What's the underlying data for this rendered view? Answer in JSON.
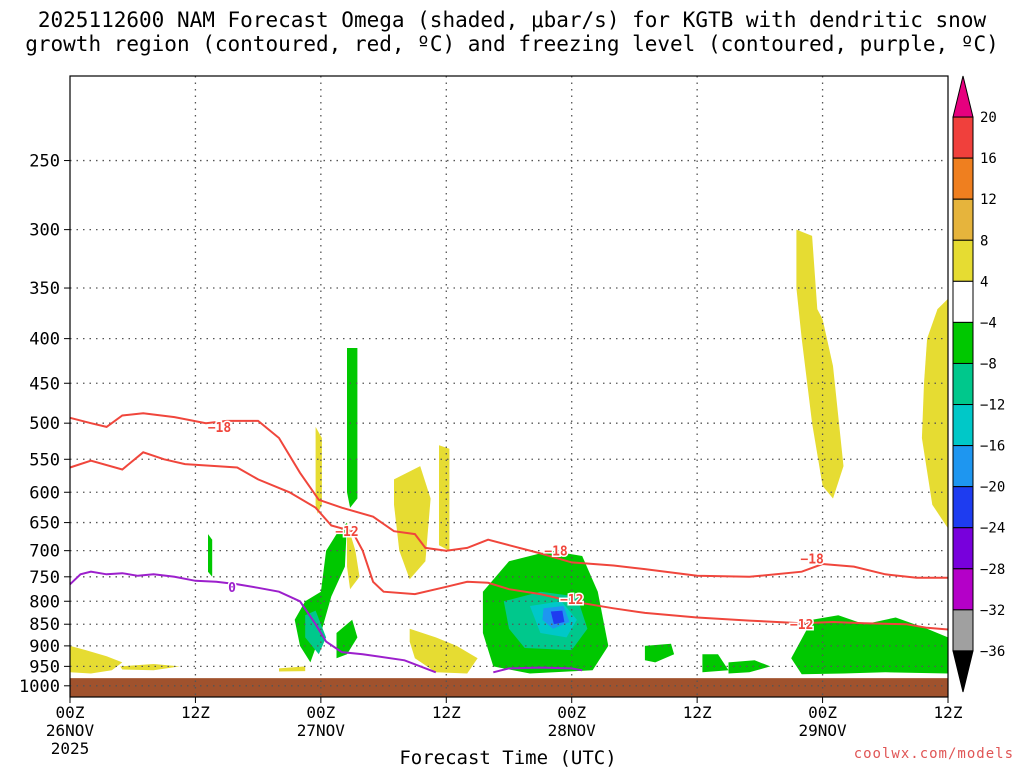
{
  "title_line1": "2025112600 NAM Forecast Omega (shaded, μbar/s) for KGTB with dendritic snow",
  "title_line2": "growth region (contoured, red, ºC) and freezing level (contoured, purple, ºC)",
  "credit": "coolwx.com/models",
  "chart_data": {
    "type": "heatmap",
    "xlabel": "Forecast Time (UTC)",
    "x_range_hours": [
      0,
      84
    ],
    "x_ticks": [
      {
        "hour": 0,
        "line1": "00Z",
        "line2": "26NOV",
        "line3": "2025"
      },
      {
        "hour": 12,
        "line1": "12Z",
        "line2": "",
        "line3": ""
      },
      {
        "hour": 24,
        "line1": "00Z",
        "line2": "27NOV",
        "line3": ""
      },
      {
        "hour": 36,
        "line1": "12Z",
        "line2": "",
        "line3": ""
      },
      {
        "hour": 48,
        "line1": "00Z",
        "line2": "28NOV",
        "line3": ""
      },
      {
        "hour": 60,
        "line1": "12Z",
        "line2": "",
        "line3": ""
      },
      {
        "hour": 72,
        "line1": "00Z",
        "line2": "29NOV",
        "line3": ""
      },
      {
        "hour": 84,
        "line1": "12Z",
        "line2": "",
        "line3": ""
      }
    ],
    "y_axis": "pressure (hPa), log scale, inverted",
    "y_range": [
      200,
      1030
    ],
    "y_ticks": [
      250,
      300,
      350,
      400,
      450,
      500,
      550,
      600,
      650,
      700,
      750,
      800,
      850,
      900,
      950,
      1000
    ],
    "surface_pressure": 980,
    "colorbar": {
      "labels": [
        "20",
        "16",
        "12",
        "8",
        "4",
        "−4",
        "−8",
        "−12",
        "−16",
        "−20",
        "−24",
        "−28",
        "−32",
        "−36"
      ],
      "colors": [
        "#e6007e",
        "#f0403c",
        "#ef7f1f",
        "#e6b43c",
        "#e6dc32",
        "#ffffff",
        "#00c800",
        "#00c88c",
        "#00c8c8",
        "#1e96f0",
        "#1e3cf0",
        "#7800dc",
        "#b400c8",
        "#a0a0a0",
        "#000000"
      ]
    },
    "omega_regions": [
      {
        "color": "#e6dc32",
        "points": [
          [
            0,
            900
          ],
          [
            1.5,
            910
          ],
          [
            3.5,
            925
          ],
          [
            5,
            940
          ],
          [
            4,
            960
          ],
          [
            2,
            968
          ],
          [
            0,
            965
          ]
        ]
      },
      {
        "color": "#e6dc32",
        "points": [
          [
            4.8,
            950
          ],
          [
            8,
            944
          ],
          [
            10.5,
            950
          ],
          [
            8,
            960
          ],
          [
            5,
            958
          ]
        ]
      },
      {
        "color": "#e6dc32",
        "points": [
          [
            20,
            955
          ],
          [
            22.5,
            950
          ],
          [
            22.5,
            962
          ],
          [
            20,
            963
          ]
        ]
      },
      {
        "color": "#e6dc32",
        "points": [
          [
            23.5,
            505
          ],
          [
            24.1,
            520
          ],
          [
            24.1,
            620
          ],
          [
            23.7,
            635
          ],
          [
            23.5,
            620
          ]
        ]
      },
      {
        "color": "#e6dc32",
        "points": [
          [
            26.5,
            650
          ],
          [
            27.3,
            700
          ],
          [
            27.7,
            750
          ],
          [
            26.8,
            775
          ],
          [
            26.5,
            730
          ]
        ]
      },
      {
        "color": "#e6dc32",
        "points": [
          [
            31,
            580
          ],
          [
            33.5,
            560
          ],
          [
            34.5,
            610
          ],
          [
            34,
            720
          ],
          [
            32.5,
            755
          ],
          [
            31.5,
            700
          ],
          [
            31,
            620
          ]
        ]
      },
      {
        "color": "#e6dc32",
        "points": [
          [
            35.3,
            530
          ],
          [
            36.3,
            535
          ],
          [
            36.3,
            700
          ],
          [
            35.3,
            690
          ]
        ]
      },
      {
        "color": "#e6dc32",
        "points": [
          [
            32.5,
            860
          ],
          [
            35,
            880
          ],
          [
            37,
            900
          ],
          [
            39,
            930
          ],
          [
            38,
            968
          ],
          [
            35,
            965
          ],
          [
            33,
            930
          ],
          [
            32.5,
            890
          ]
        ]
      },
      {
        "color": "#e6dc32",
        "points": [
          [
            69.5,
            300
          ],
          [
            71,
            305
          ],
          [
            71.5,
            370
          ],
          [
            72,
            380
          ],
          [
            73,
            430
          ],
          [
            74,
            560
          ],
          [
            73,
            610
          ],
          [
            72,
            590
          ],
          [
            71,
            500
          ],
          [
            70,
            400
          ],
          [
            69.5,
            350
          ]
        ]
      },
      {
        "color": "#e6dc32",
        "points": [
          [
            84,
            360
          ],
          [
            84,
            660
          ],
          [
            82.5,
            620
          ],
          [
            81.5,
            520
          ],
          [
            81.7,
            450
          ],
          [
            82,
            400
          ],
          [
            83,
            370
          ]
        ]
      },
      {
        "color": "#00c800",
        "points": [
          [
            13.2,
            670
          ],
          [
            13.6,
            680
          ],
          [
            13.6,
            750
          ],
          [
            13.2,
            740
          ]
        ]
      },
      {
        "color": "#00c800",
        "points": [
          [
            26.5,
            410
          ],
          [
            27.5,
            410
          ],
          [
            27.5,
            610
          ],
          [
            26.8,
            625
          ],
          [
            26.5,
            600
          ]
        ]
      },
      {
        "color": "#00c800",
        "points": [
          [
            24.5,
            700
          ],
          [
            25.5,
            670
          ],
          [
            26.5,
            650
          ],
          [
            26.3,
            730
          ],
          [
            25,
            790
          ],
          [
            24,
            870
          ],
          [
            23,
            940
          ],
          [
            22,
            900
          ],
          [
            21.5,
            840
          ],
          [
            22.5,
            800
          ],
          [
            24,
            780
          ]
        ]
      },
      {
        "color": "#00c800",
        "points": [
          [
            25.5,
            870
          ],
          [
            27,
            840
          ],
          [
            27.5,
            880
          ],
          [
            26.5,
            920
          ],
          [
            25.5,
            930
          ]
        ]
      },
      {
        "color": "#00c800",
        "points": [
          [
            39.5,
            780
          ],
          [
            42,
            720
          ],
          [
            46,
            700
          ],
          [
            49,
            710
          ],
          [
            50.5,
            780
          ],
          [
            51.5,
            900
          ],
          [
            50,
            960
          ],
          [
            44,
            968
          ],
          [
            40.5,
            950
          ],
          [
            39.5,
            870
          ]
        ]
      },
      {
        "color": "#00c800",
        "points": [
          [
            55,
            900
          ],
          [
            57.5,
            895
          ],
          [
            57.8,
            920
          ],
          [
            56,
            940
          ],
          [
            55,
            935
          ]
        ]
      },
      {
        "color": "#00c800",
        "points": [
          [
            60.5,
            920
          ],
          [
            62,
            920
          ],
          [
            63,
            960
          ],
          [
            60.5,
            965
          ]
        ]
      },
      {
        "color": "#00c800",
        "points": [
          [
            63,
            940
          ],
          [
            65.5,
            935
          ],
          [
            67,
            950
          ],
          [
            65,
            965
          ],
          [
            63,
            968
          ]
        ]
      },
      {
        "color": "#00c800",
        "points": [
          [
            69,
            930
          ],
          [
            71,
            840
          ],
          [
            73.5,
            830
          ],
          [
            76,
            850
          ],
          [
            79,
            835
          ],
          [
            82,
            860
          ],
          [
            84,
            880
          ],
          [
            84,
            968
          ],
          [
            78,
            965
          ],
          [
            74,
            968
          ],
          [
            70,
            970
          ]
        ]
      },
      {
        "color": "#00c88c",
        "points": [
          [
            41.5,
            800
          ],
          [
            45,
            780
          ],
          [
            48.5,
            790
          ],
          [
            49.5,
            860
          ],
          [
            48,
            910
          ],
          [
            43.5,
            905
          ],
          [
            42,
            860
          ]
        ]
      },
      {
        "color": "#00c88c",
        "points": [
          [
            22.5,
            830
          ],
          [
            23.5,
            820
          ],
          [
            24.5,
            880
          ],
          [
            23.8,
            920
          ],
          [
            22.5,
            880
          ]
        ]
      },
      {
        "color": "#00c8c8",
        "points": [
          [
            44,
            810
          ],
          [
            47,
            800
          ],
          [
            48.5,
            840
          ],
          [
            47.5,
            880
          ],
          [
            45,
            870
          ]
        ]
      },
      {
        "color": "#1e96f0",
        "points": [
          [
            45.3,
            815
          ],
          [
            47.2,
            810
          ],
          [
            47.8,
            845
          ],
          [
            46.2,
            860
          ],
          [
            45.2,
            840
          ]
        ]
      },
      {
        "color": "#1e3cf0",
        "points": [
          [
            46,
            822
          ],
          [
            47.1,
            820
          ],
          [
            47.3,
            845
          ],
          [
            46.3,
            850
          ]
        ]
      }
    ],
    "series": [
      {
        "kind": "isotherm",
        "label": "−18",
        "color": "#f0463c",
        "label_positions": [
          [
            14.3,
            505
          ],
          [
            46.5,
            700
          ],
          [
            71,
            715
          ]
        ],
        "points": [
          [
            0,
            493
          ],
          [
            2,
            500
          ],
          [
            3.5,
            505
          ],
          [
            5,
            490
          ],
          [
            7,
            487
          ],
          [
            10,
            492
          ],
          [
            13,
            500
          ],
          [
            15,
            497
          ],
          [
            18,
            497
          ],
          [
            20,
            520
          ],
          [
            22,
            570
          ],
          [
            23.8,
            612
          ],
          [
            26,
            625
          ],
          [
            29,
            640
          ],
          [
            31,
            665
          ],
          [
            33,
            670
          ],
          [
            34,
            695
          ],
          [
            36,
            700
          ],
          [
            38,
            695
          ],
          [
            40,
            680
          ],
          [
            42,
            690
          ],
          [
            45,
            705
          ],
          [
            48,
            722
          ],
          [
            52,
            728
          ],
          [
            55,
            735
          ],
          [
            60,
            748
          ],
          [
            65,
            750
          ],
          [
            70,
            740
          ],
          [
            72,
            725
          ],
          [
            75,
            730
          ],
          [
            78,
            745
          ],
          [
            81,
            752
          ],
          [
            84,
            752
          ]
        ]
      },
      {
        "kind": "isotherm",
        "label": "−12",
        "color": "#f0463c",
        "label_positions": [
          [
            26.5,
            665
          ],
          [
            48,
            795
          ],
          [
            70,
            850
          ]
        ],
        "points": [
          [
            0,
            562
          ],
          [
            2,
            552
          ],
          [
            5,
            565
          ],
          [
            7,
            540
          ],
          [
            9,
            550
          ],
          [
            11,
            557
          ],
          [
            14,
            560
          ],
          [
            16,
            562
          ],
          [
            18,
            580
          ],
          [
            21,
            600
          ],
          [
            23.5,
            625
          ],
          [
            25,
            655
          ],
          [
            27,
            665
          ],
          [
            28,
            700
          ],
          [
            29,
            760
          ],
          [
            30,
            780
          ],
          [
            33,
            785
          ],
          [
            36,
            770
          ],
          [
            38,
            760
          ],
          [
            40,
            762
          ],
          [
            42,
            775
          ],
          [
            45,
            785
          ],
          [
            48,
            800
          ],
          [
            52,
            815
          ],
          [
            55,
            825
          ],
          [
            60,
            835
          ],
          [
            65,
            842
          ],
          [
            70,
            848
          ],
          [
            73,
            845
          ],
          [
            76,
            848
          ],
          [
            80,
            850
          ],
          [
            82,
            858
          ],
          [
            84,
            862
          ]
        ]
      },
      {
        "kind": "freezing-level",
        "label": "0",
        "color": "#9c1fcc",
        "label_positions": [
          [
            15.5,
            770
          ]
        ],
        "points": [
          [
            0,
            765
          ],
          [
            1,
            745
          ],
          [
            2,
            740
          ],
          [
            3.5,
            745
          ],
          [
            5,
            743
          ],
          [
            6.5,
            748
          ],
          [
            8,
            745
          ],
          [
            10,
            750
          ],
          [
            12,
            758
          ],
          [
            14,
            760
          ],
          [
            16,
            765
          ],
          [
            18,
            772
          ],
          [
            20,
            780
          ],
          [
            22,
            800
          ],
          [
            23.5,
            850
          ],
          [
            24.5,
            890
          ],
          [
            26,
            915
          ],
          [
            28,
            920
          ],
          [
            32,
            935
          ],
          [
            35,
            965
          ]
        ]
      },
      {
        "kind": "freezing-level",
        "label": "",
        "color": "#9c1fcc",
        "label_positions": [],
        "points": [
          [
            40.5,
            965
          ],
          [
            42,
            955
          ],
          [
            45,
            953
          ],
          [
            48,
            955
          ],
          [
            49,
            960
          ]
        ]
      }
    ]
  }
}
